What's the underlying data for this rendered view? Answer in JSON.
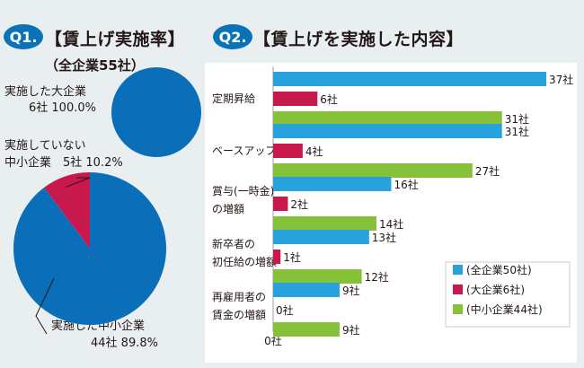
{
  "colors": {
    "total": "#0a6fb8",
    "total_light": "#28a2dc",
    "large": "#c8194f",
    "sme": "#86c13a",
    "badge": "#0a72b6"
  },
  "q1": {
    "badge": "Q1.",
    "title": "【賃上げ実施率】",
    "subtitle": "（全企業55社）",
    "large_pie": {
      "label_line1": "実施した大企業",
      "label_line2": "6社 100.0%",
      "implemented_pct": 100.0
    },
    "sme_pie": {
      "not_label_line1": "実施していない",
      "not_label_line2": "中小企業　5社 10.2%",
      "impl_label_line1": "実施した中小企業",
      "impl_label_line2": "44社 89.8%",
      "implemented_pct": 89.8,
      "not_implemented_pct": 10.2
    }
  },
  "q2": {
    "badge": "Q2.",
    "title": "【賃上げを実施した内容】"
  },
  "chart_data": [
    {
      "type": "pie",
      "title": "",
      "slices": [
        {
          "label": "実施した大企業",
          "count": 6,
          "percent": 100.0
        }
      ]
    },
    {
      "type": "pie",
      "title": "",
      "slices": [
        {
          "label": "実施した中小企業",
          "count": 44,
          "percent": 89.8
        },
        {
          "label": "実施していない中小企業",
          "count": 5,
          "percent": 10.2
        }
      ]
    },
    {
      "type": "bar",
      "orientation": "horizontal",
      "categories": [
        [
          "定期昇給"
        ],
        [
          "ベースアップ"
        ],
        [
          "賞与(一時金)",
          "の増額"
        ],
        [
          "新卒者の",
          "初任給の増額"
        ],
        [
          "再雇用者の",
          "賃金の増額"
        ]
      ],
      "series": [
        {
          "name": "(全企業50社)",
          "values": [
            37,
            31,
            16,
            13,
            9
          ]
        },
        {
          "name": "(大企業6社)",
          "values": [
            6,
            4,
            2,
            1,
            0
          ]
        },
        {
          "name": "(中小企業44社)",
          "values": [
            31,
            27,
            14,
            12,
            9
          ]
        }
      ],
      "value_suffix": "社",
      "axis_zero_label": "0社",
      "xlim": [
        0,
        37
      ],
      "legend_position": "bottom-right"
    }
  ]
}
